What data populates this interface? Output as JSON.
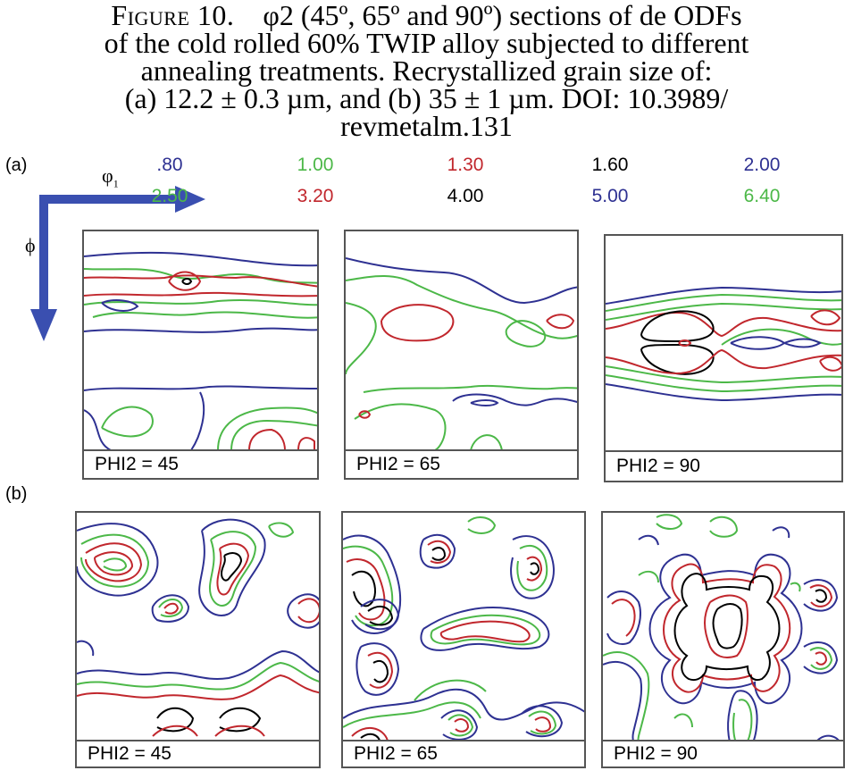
{
  "caption": {
    "figure_label": "Figure 10.",
    "line1": "φ2 (45º, 65º and 90º) sections of de ODFs",
    "line2": "of the cold rolled 60% TWIP alloy subjected to different",
    "line3": "annealing treatments. Recrystallized grain size of:",
    "line4": "(a) 12.2 ± 0.3 µm, and (b) 35 ± 1 µm.  DOI: 10.3989/",
    "line5": "revmetalm.131"
  },
  "panels": {
    "a_label": "(a)",
    "b_label": "(b)"
  },
  "axes": {
    "phi1": "φ",
    "phi1_sub": "1",
    "phi": "ϕ"
  },
  "legend": {
    "row1": [
      {
        "value": ".80",
        "color": "#2e3192"
      },
      {
        "value": "1.00",
        "color": "#4cb848"
      },
      {
        "value": "1.30",
        "color": "#c1272d"
      },
      {
        "value": "1.60",
        "color": "#000000"
      },
      {
        "value": "2.00",
        "color": "#2e3192"
      }
    ],
    "row2": [
      {
        "value": "2.50",
        "color": "#4cb848"
      },
      {
        "value": "3.20",
        "color": "#c1272d"
      },
      {
        "value": "4.00",
        "color": "#000000"
      },
      {
        "value": "5.00",
        "color": "#2e3192"
      },
      {
        "value": "6.40",
        "color": "#4cb848"
      }
    ]
  },
  "plots": {
    "a": [
      "PHI2 = 45",
      "PHI2 = 65",
      "PHI2 = 90"
    ],
    "b": [
      "PHI2 = 45",
      "PHI2 = 65",
      "PHI2 = 90"
    ]
  },
  "colors": {
    "blue": "#2e3192",
    "green": "#4cb848",
    "red": "#c1272d",
    "black": "#000000",
    "axis_arrow": "#3a4fb0"
  }
}
